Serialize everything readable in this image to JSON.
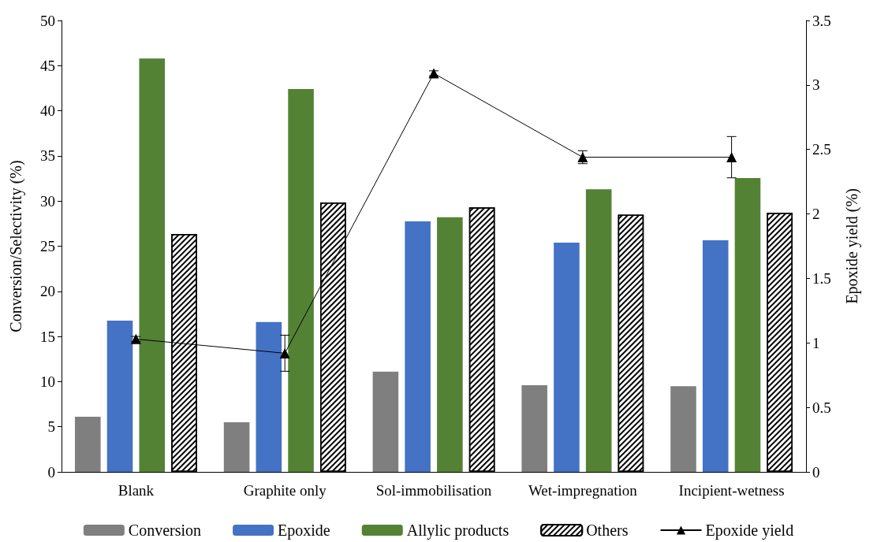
{
  "chart_data": {
    "type": "bar",
    "ylabel": "Conversion/Selectivity (%)",
    "y2label": "Epoxide yield (%)",
    "categories": [
      "Blank",
      "Graphite only",
      "Sol-immobilisation",
      "Wet-impregnation",
      "Incipient-wetness"
    ],
    "series": [
      {
        "name": "Conversion",
        "color": "#7f7f7f",
        "values": [
          6.1,
          5.5,
          11.1,
          9.6,
          9.5
        ]
      },
      {
        "name": "Epoxide",
        "color": "#4472c4",
        "values": [
          16.75,
          16.6,
          27.75,
          25.4,
          25.65
        ]
      },
      {
        "name": "Allylic products",
        "color": "#548235",
        "values": [
          45.8,
          42.4,
          28.2,
          31.3,
          32.55
        ]
      },
      {
        "name": "Others",
        "color": "#000000",
        "values": [
          26.35,
          29.85,
          29.3,
          28.5,
          28.7
        ]
      },
      {
        "name": "Epoxide yield",
        "type": "line",
        "axis": "y2",
        "color": "#000000",
        "marker": "triangle",
        "values": [
          1.03,
          0.92,
          3.09,
          2.44,
          2.44
        ],
        "errors": [
          0.02,
          0.14,
          0.02,
          0.05,
          0.16
        ]
      }
    ],
    "ylim": [
      0,
      50
    ],
    "yticks": [
      0,
      5,
      10,
      15,
      20,
      25,
      30,
      35,
      40,
      45,
      50
    ],
    "y2lim": [
      0,
      3.5
    ],
    "y2ticks": [
      0,
      0.5,
      1,
      1.5,
      2,
      2.5,
      3,
      3.5
    ],
    "grid": false,
    "legend": "bottom"
  }
}
